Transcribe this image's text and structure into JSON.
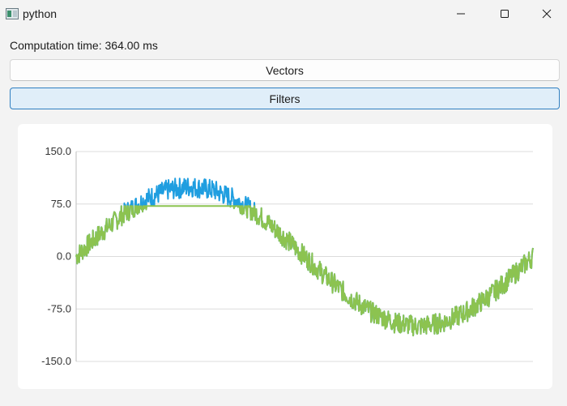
{
  "window": {
    "title": "python",
    "controls": [
      "minimize-icon",
      "maximize-icon",
      "close-icon"
    ]
  },
  "status": {
    "computation_time": "Computation time: 364.00 ms"
  },
  "buttons": {
    "vectors": "Vectors",
    "filters": "Filters"
  },
  "colors": {
    "raw_signal": "#1f9ee0",
    "filtered_signal": "#8cc350",
    "filters_button_bg": "#e0eef9",
    "filters_button_border": "#2f7fc1"
  },
  "chart_data": {
    "type": "line",
    "title": "",
    "xlabel": "",
    "ylabel": "",
    "ylim": [
      -150,
      150
    ],
    "xlim": [
      0,
      1000
    ],
    "yticks": [
      "150.0",
      "75.0",
      "0.0",
      "-75.0",
      "-150.0"
    ],
    "grid": true,
    "legend": "none",
    "description_of_series": "noisy sine wave, amplitude about 100, one full period, noise about ±15",
    "series": [
      {
        "x": [
          0,
          50,
          100,
          150,
          200,
          250,
          300,
          350,
          400,
          450,
          500,
          550,
          600,
          650,
          700,
          750,
          800,
          850,
          900,
          950,
          1000
        ],
        "y": [
          0,
          31,
          59,
          81,
          95,
          100,
          95,
          81,
          59,
          31,
          0,
          -31,
          -59,
          -81,
          -95,
          -100,
          -95,
          -81,
          -59,
          -31,
          0
        ],
        "noise": 15,
        "color": "#1f9ee0"
      },
      {
        "clip_max": 72,
        "color": "#8cc350"
      }
    ]
  }
}
